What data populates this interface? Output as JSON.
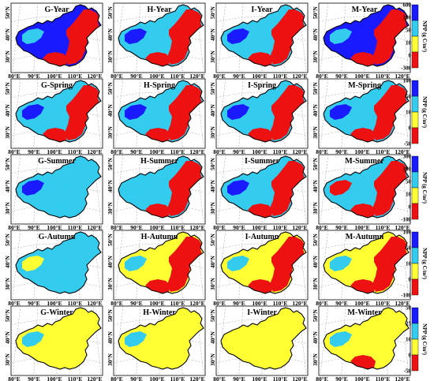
{
  "rows": [
    {
      "panels": [
        "G-Year",
        "H-Year",
        "I-Year",
        "M-Year"
      ],
      "colorbar": {
        "ticks": [
          "600",
          "100",
          "50",
          "10",
          "0",
          "-300"
        ],
        "label": "NPP (g C/m²)"
      },
      "fills": [
        {
          "base": "blue",
          "mid": "cyan",
          "east": "red",
          "south": "red"
        },
        {
          "base": "cyan",
          "mid": "blue",
          "east": "red",
          "south": "red"
        },
        {
          "base": "cyan",
          "mid": "blue",
          "east": "red",
          "south": "red"
        },
        {
          "base": "blue",
          "mid": "cyan",
          "east": "red",
          "south": "red"
        }
      ]
    },
    {
      "panels": [
        "G-Spring",
        "H-Spring",
        "I-Spring",
        "M-Spring"
      ],
      "colorbar": {
        "ticks": [
          "100",
          "50",
          "10",
          "0",
          "-50"
        ],
        "label": "NPP (g C/m²)"
      },
      "fills": [
        {
          "base": "cyan",
          "mid": "blue",
          "east": "red",
          "south": "red"
        },
        {
          "base": "cyan",
          "mid": "blue",
          "east": "red",
          "south": "red"
        },
        {
          "base": "cyan",
          "mid": "blue",
          "east": "red",
          "south": "red"
        },
        {
          "base": "cyan",
          "mid": "blue",
          "east": "red",
          "south": "red"
        }
      ]
    },
    {
      "panels": [
        "G-Summer",
        "H-Summer",
        "I-Summer",
        "M-Summer"
      ],
      "colorbar": {
        "ticks": [
          "300",
          "100",
          "50",
          "10",
          "0",
          "-100"
        ],
        "label": "NPP (g C/m²)"
      },
      "fills": [
        {
          "base": "cyan",
          "mid": "blue",
          "east": "cyan",
          "south": "cyan"
        },
        {
          "base": "cyan",
          "mid": "cyan",
          "east": "red",
          "south": "red"
        },
        {
          "base": "cyan",
          "mid": "blue",
          "east": "red",
          "south": "red"
        },
        {
          "base": "cyan",
          "mid": "red",
          "east": "red",
          "south": "red"
        }
      ]
    },
    {
      "panels": [
        "G-Autumn",
        "H-Autumn",
        "I-Autumn",
        "M-Autumn"
      ],
      "colorbar": {
        "ticks": [
          "100",
          "50",
          "10",
          "0",
          "-100"
        ],
        "label": "NPP (g C/m²)"
      },
      "fills": [
        {
          "base": "cyan",
          "mid": "yellow",
          "east": "cyan",
          "south": "cyan"
        },
        {
          "base": "yellow",
          "mid": "cyan",
          "east": "red",
          "south": "red"
        },
        {
          "base": "yellow",
          "mid": "cyan",
          "east": "red",
          "south": "red"
        },
        {
          "base": "yellow",
          "mid": "cyan",
          "east": "red",
          "south": "red"
        }
      ]
    },
    {
      "panels": [
        "G-Winter",
        "H-Winter",
        "I-Winter",
        "M-Winter"
      ],
      "colorbar": {
        "ticks": [
          "50",
          "25",
          "10",
          "0",
          "-50"
        ],
        "label": "NPP (g C/m²)"
      },
      "fills": [
        {
          "base": "yellow",
          "mid": "cyan",
          "east": "yellow",
          "south": "yellow"
        },
        {
          "base": "yellow",
          "mid": "cyan",
          "east": "yellow",
          "south": "yellow"
        },
        {
          "base": "yellow",
          "mid": "yellow",
          "east": "yellow",
          "south": "yellow"
        },
        {
          "base": "yellow",
          "mid": "cyan",
          "east": "yellow",
          "south": "red"
        }
      ]
    }
  ],
  "axes": {
    "lon_ticks": [
      "80°E",
      "90°E",
      "100°E",
      "110°E",
      "120°E"
    ],
    "lat_ticks": [
      "50°N",
      "40°N",
      "30°N"
    ]
  },
  "colors": {
    "blue": "#1a1aff",
    "cyan": "#33ccee",
    "yellow": "#ffff33",
    "red": "#ee1111",
    "outline": "#000000",
    "grid": "#9a9a9a"
  },
  "colorbar_scale": [
    "blue",
    "cyan",
    "yellow",
    "red"
  ]
}
